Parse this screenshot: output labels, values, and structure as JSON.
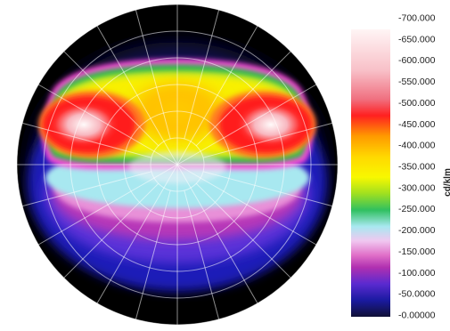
{
  "chart_data": {
    "type": "heatmap",
    "title": "",
    "colorbar": {
      "unit_label": "cd/klm",
      "min": 0,
      "max": 700,
      "tick_labels": [
        "-700.000",
        "-650.000",
        "-600.000",
        "-550.000",
        "-500.000",
        "-450.000",
        "-400.000",
        "-350.000",
        "-300.000",
        "-250.000",
        "-200.000",
        "-150.000",
        "-100.000",
        "-50.0000",
        "-0.00000"
      ],
      "tick_values": [
        700,
        650,
        600,
        550,
        500,
        450,
        400,
        350,
        300,
        250,
        200,
        150,
        100,
        50,
        0
      ],
      "stops": [
        {
          "value": 0,
          "color": "#101035"
        },
        {
          "value": 40,
          "color": "#1a1aa0"
        },
        {
          "value": 80,
          "color": "#5a2ad0"
        },
        {
          "value": 120,
          "color": "#b030b0"
        },
        {
          "value": 150,
          "color": "#e070c8"
        },
        {
          "value": 185,
          "color": "#f0c8f0"
        },
        {
          "value": 220,
          "color": "#a8e8f0"
        },
        {
          "value": 260,
          "color": "#30c060"
        },
        {
          "value": 300,
          "color": "#a0e020"
        },
        {
          "value": 340,
          "color": "#f8f800"
        },
        {
          "value": 390,
          "color": "#ffd800"
        },
        {
          "value": 440,
          "color": "#ff9a00"
        },
        {
          "value": 490,
          "color": "#ff2020"
        },
        {
          "value": 530,
          "color": "#f07080"
        },
        {
          "value": 600,
          "color": "#f8c0c8"
        },
        {
          "value": 700,
          "color": "#fff5f5"
        }
      ]
    },
    "polar_grid": {
      "rings": 6,
      "spokes": 24,
      "grid": true
    },
    "hot_spots": [
      {
        "name": "left lobe",
        "peak_value": 690
      },
      {
        "name": "right lobe",
        "peak_value": 690
      }
    ]
  }
}
